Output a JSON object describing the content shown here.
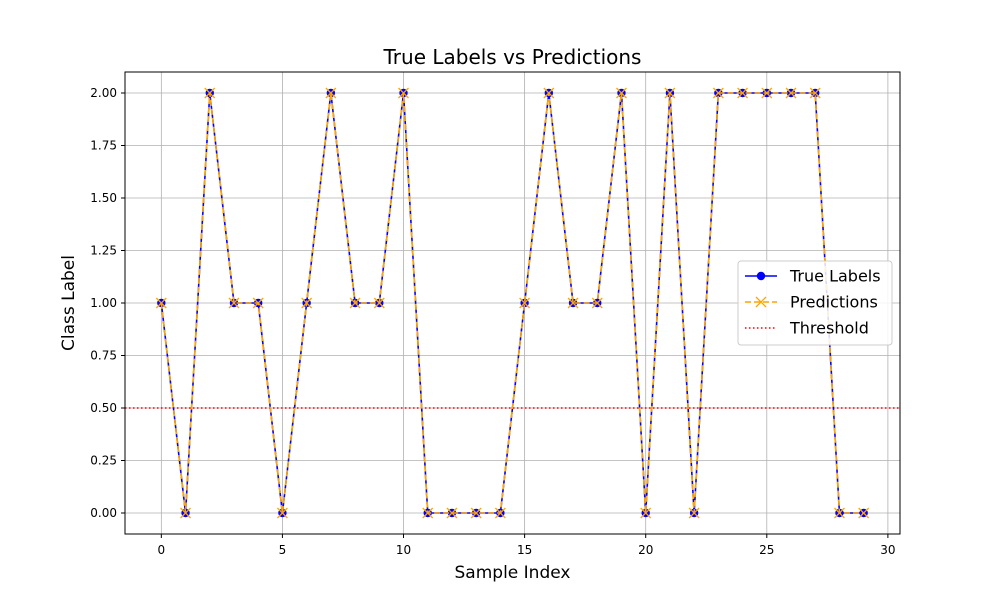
{
  "chart_data": {
    "type": "line",
    "title": "True Labels vs Predictions",
    "xlabel": "Sample Index",
    "ylabel": "Class Label",
    "xlim": [
      -1.5,
      30.5
    ],
    "ylim": [
      -0.1,
      2.1
    ],
    "xticks": [
      0,
      5,
      10,
      15,
      20,
      25,
      30
    ],
    "yticks": [
      0.0,
      0.25,
      0.5,
      0.75,
      1.0,
      1.25,
      1.5,
      1.75,
      2.0
    ],
    "ytick_labels": [
      "0.00",
      "0.25",
      "0.50",
      "0.75",
      "1.00",
      "1.25",
      "1.50",
      "1.75",
      "2.00"
    ],
    "grid": true,
    "legend_position": "center-right",
    "x": [
      0,
      1,
      2,
      3,
      4,
      5,
      6,
      7,
      8,
      9,
      10,
      11,
      12,
      13,
      14,
      15,
      16,
      17,
      18,
      19,
      20,
      21,
      22,
      23,
      24,
      25,
      26,
      27,
      28,
      29
    ],
    "series": [
      {
        "name": "True Labels",
        "color": "#0000ff",
        "line_style": "solid",
        "marker": "circle",
        "values": [
          1,
          0,
          2,
          1,
          1,
          0,
          1,
          2,
          1,
          1,
          2,
          0,
          0,
          0,
          0,
          1,
          2,
          1,
          1,
          2,
          0,
          2,
          0,
          2,
          2,
          2,
          2,
          2,
          0,
          0
        ]
      },
      {
        "name": "Predictions",
        "color": "#ffa500",
        "line_style": "dashed",
        "marker": "x",
        "values": [
          1,
          0,
          2,
          1,
          1,
          0,
          1,
          2,
          1,
          1,
          2,
          0,
          0,
          0,
          0,
          1,
          2,
          1,
          1,
          2,
          0,
          2,
          0,
          2,
          2,
          2,
          2,
          2,
          0,
          0
        ]
      }
    ],
    "reference_lines": [
      {
        "name": "Threshold",
        "y": 0.5,
        "color": "#ff0000",
        "line_style": "dotted"
      }
    ]
  }
}
